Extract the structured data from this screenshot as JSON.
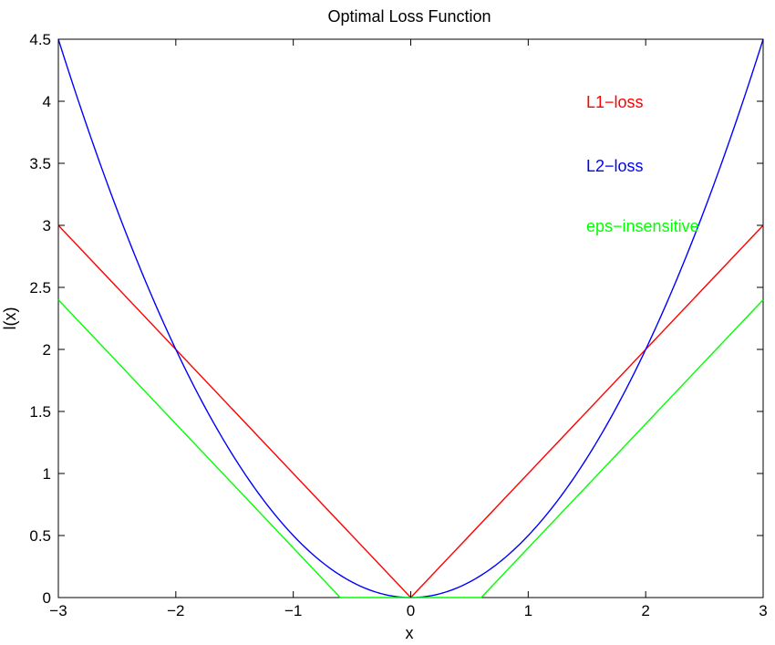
{
  "chart_data": {
    "type": "line",
    "title": "Optimal Loss Function",
    "xlabel": "x",
    "ylabel": "l(x)",
    "xlim": [
      -3,
      3
    ],
    "ylim": [
      0,
      4.5
    ],
    "grid": false,
    "legend_placement": "top-right",
    "x_ticks": [
      -3,
      -2,
      -1,
      0,
      1,
      2,
      3
    ],
    "x_tick_labels": [
      "−3",
      "−2",
      "−1",
      "0",
      "1",
      "2",
      "3"
    ],
    "y_ticks": [
      0,
      0.5,
      1,
      1.5,
      2,
      2.5,
      3,
      3.5,
      4,
      4.5
    ],
    "y_tick_labels": [
      "0",
      "0.5",
      "1",
      "1.5",
      "2",
      "2.5",
      "3",
      "3.5",
      "4",
      "4.5"
    ],
    "series": [
      {
        "name": "L1−loss",
        "color": "#ff0000",
        "x": [
          -3,
          0,
          3
        ],
        "y": [
          3,
          0,
          3
        ]
      },
      {
        "name": "L2−loss",
        "color": "#0000ff",
        "x": [
          -3,
          -2.5,
          -2,
          -1.5,
          -1,
          -0.5,
          0,
          0.5,
          1,
          1.5,
          2,
          2.5,
          3
        ],
        "y": [
          4.5,
          3.125,
          2,
          1.125,
          0.5,
          0.125,
          0,
          0.125,
          0.5,
          1.125,
          2,
          3.125,
          4.5
        ]
      },
      {
        "name": "eps−insensitive",
        "color": "#00ff00",
        "x": [
          -3,
          -0.6,
          0.6,
          3
        ],
        "y": [
          2.4,
          0,
          0,
          2.4
        ]
      }
    ]
  }
}
